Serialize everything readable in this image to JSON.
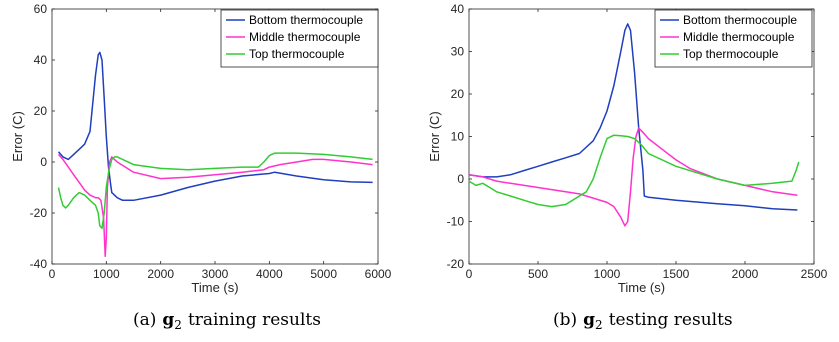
{
  "chart_data": [
    {
      "type": "line",
      "xlabel": "Time (s)",
      "ylabel": "Error (C)",
      "xlim": [
        0,
        6000
      ],
      "ylim": [
        -40,
        60
      ],
      "xticks": [
        0,
        1000,
        2000,
        3000,
        4000,
        5000,
        6000
      ],
      "yticks": [
        -40,
        -20,
        0,
        20,
        40,
        60
      ],
      "grid": false,
      "legend_position": "top-right",
      "caption": {
        "tag": "(a)",
        "symbol": "g",
        "subscript": "2",
        "text": "training results"
      },
      "series": [
        {
          "name": "Bottom thermocouple",
          "color": "#1f3fbf",
          "x": [
            120,
            200,
            300,
            400,
            500,
            600,
            700,
            800,
            850,
            880,
            920,
            960,
            1000,
            1040,
            1080,
            1100,
            1200,
            1300,
            1500,
            2000,
            2500,
            3000,
            3500,
            4000,
            4100,
            4500,
            5000,
            5500,
            5900
          ],
          "y": [
            4,
            2,
            1,
            3,
            5,
            7,
            12,
            34,
            42,
            43,
            40,
            25,
            10,
            -2,
            -9,
            -12,
            -14,
            -15,
            -15,
            -13,
            -10,
            -7.5,
            -5.5,
            -4.5,
            -4,
            -5.5,
            -7,
            -7.8,
            -8
          ]
        },
        {
          "name": "Middle thermocouple",
          "color": "#ff33cc",
          "x": [
            120,
            200,
            300,
            400,
            500,
            600,
            700,
            800,
            850,
            900,
            950,
            980,
            1000,
            1020,
            1060,
            1100,
            1200,
            1500,
            2000,
            2500,
            3000,
            3500,
            3900,
            4000,
            4200,
            4500,
            4800,
            5000,
            5500,
            5900
          ],
          "y": [
            3,
            1,
            -2,
            -5,
            -8,
            -11,
            -13,
            -14,
            -14,
            -15,
            -22,
            -37,
            -30,
            -10,
            0,
            2,
            0,
            -4,
            -6.5,
            -6,
            -5,
            -4,
            -3,
            -2,
            -1,
            0,
            1,
            1,
            0,
            -1
          ]
        },
        {
          "name": "Top thermocouple",
          "color": "#33cc33",
          "x": [
            120,
            160,
            200,
            250,
            300,
            400,
            500,
            600,
            700,
            800,
            850,
            880,
            920,
            960,
            1000,
            1050,
            1100,
            1150,
            1200,
            1300,
            1500,
            2000,
            2500,
            3000,
            3500,
            3800,
            3900,
            4000,
            4100,
            4500,
            5000,
            5500,
            5900
          ],
          "y": [
            -10,
            -14,
            -17,
            -18,
            -17,
            -14,
            -12,
            -13,
            -15,
            -17,
            -20,
            -25,
            -26,
            -20,
            -10,
            -3,
            1,
            2,
            2,
            1,
            -1,
            -2.5,
            -3,
            -2.5,
            -2,
            -2,
            0,
            2.5,
            3.5,
            3.5,
            3,
            2,
            1
          ]
        }
      ]
    },
    {
      "type": "line",
      "xlabel": "Time (s)",
      "ylabel": "Error (C)",
      "xlim": [
        0,
        2500
      ],
      "ylim": [
        -20,
        40
      ],
      "xticks": [
        0,
        500,
        1000,
        1500,
        2000,
        2500
      ],
      "yticks": [
        -20,
        -10,
        0,
        10,
        20,
        30,
        40
      ],
      "grid": false,
      "legend_position": "top-right",
      "caption": {
        "tag": "(b)",
        "symbol": "g",
        "subscript": "2",
        "text": "testing results"
      },
      "series": [
        {
          "name": "Bottom thermocouple",
          "color": "#1f3fbf",
          "x": [
            0,
            100,
            200,
            300,
            400,
            500,
            600,
            700,
            800,
            900,
            950,
            1000,
            1050,
            1100,
            1130,
            1150,
            1170,
            1200,
            1230,
            1260,
            1270,
            1300,
            1500,
            1800,
            2000,
            2200,
            2380
          ],
          "y": [
            1,
            0.5,
            0.5,
            1,
            2,
            3,
            4,
            5,
            6,
            9,
            12,
            16,
            22,
            30,
            35,
            36.5,
            35,
            25,
            12,
            2,
            -4,
            -4.3,
            -5,
            -5.8,
            -6.3,
            -7,
            -7.3
          ]
        },
        {
          "name": "Middle thermocouple",
          "color": "#ff33cc",
          "x": [
            0,
            100,
            200,
            300,
            400,
            500,
            600,
            700,
            800,
            900,
            1000,
            1050,
            1100,
            1130,
            1150,
            1170,
            1190,
            1210,
            1230,
            1260,
            1300,
            1400,
            1500,
            1600,
            1800,
            2000,
            2200,
            2380
          ],
          "y": [
            1,
            0.5,
            -0.5,
            -1,
            -1.5,
            -2,
            -2.5,
            -3,
            -3.5,
            -4.5,
            -5.5,
            -6.5,
            -9,
            -11,
            -10,
            -3,
            5,
            10,
            12,
            11,
            9.5,
            7,
            4.5,
            2.5,
            0,
            -1.5,
            -3,
            -3.8
          ]
        },
        {
          "name": "Top thermocouple",
          "color": "#33cc33",
          "x": [
            0,
            50,
            100,
            150,
            200,
            300,
            400,
            500,
            600,
            700,
            750,
            800,
            850,
            900,
            950,
            1000,
            1050,
            1100,
            1150,
            1200,
            1250,
            1300,
            1500,
            1800,
            2000,
            2200,
            2340,
            2370,
            2390
          ],
          "y": [
            -0.5,
            -1.5,
            -1,
            -2,
            -3,
            -4,
            -5,
            -6,
            -6.5,
            -6,
            -5,
            -4,
            -3,
            0,
            5,
            9.5,
            10.3,
            10.2,
            10,
            9.5,
            8,
            6,
            3,
            0,
            -1.5,
            -1,
            -0.5,
            2,
            4
          ]
        }
      ]
    }
  ]
}
